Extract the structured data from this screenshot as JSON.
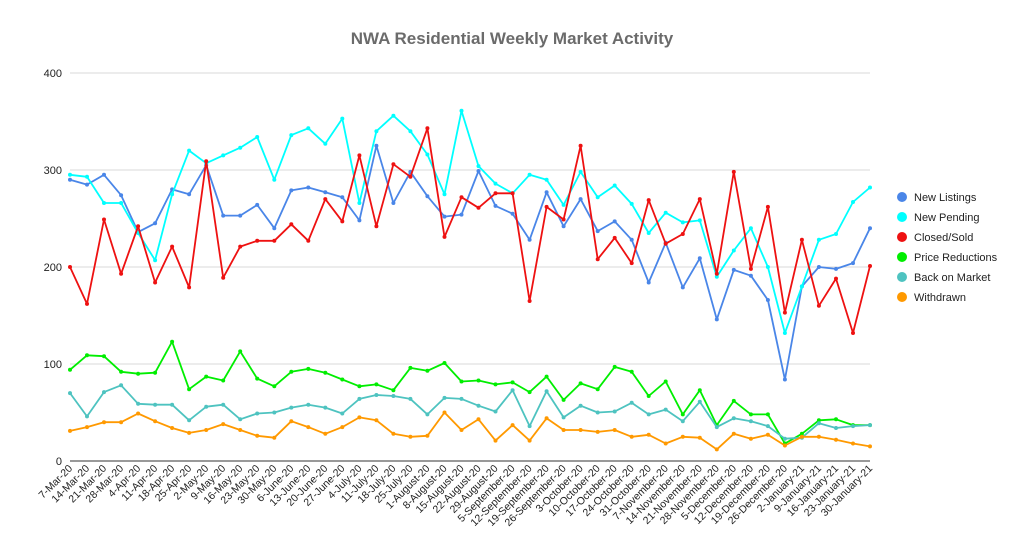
{
  "chart_data": {
    "type": "line",
    "title": "NWA Residential Weekly Market Activity",
    "xlabel": "",
    "ylabel": "",
    "ylim": [
      0,
      400
    ],
    "yticks": [
      0,
      100,
      200,
      300,
      400
    ],
    "grid": true,
    "legend_position": "right",
    "categories": [
      "7-Mar-20",
      "14-Mar-20",
      "21-Mar-20",
      "28-Mar-20",
      "4-Apr-20",
      "11-Apr-20",
      "18-Apr-20",
      "25-Apr-20",
      "2-May-20",
      "9-May-20",
      "16-May-20",
      "23-May-20",
      "30-May-20",
      "6-June-20",
      "13-June-20",
      "20-June-20",
      "27-June-20",
      "4-July-20",
      "11-July-20",
      "18-July-20",
      "25-July-20",
      "1-August-20",
      "8-August-20",
      "15-August-20",
      "22-August-20",
      "29-August-20",
      "5-September-20",
      "12-September-20",
      "19-September-20",
      "26-September-20",
      "3-October-20",
      "10-October-20",
      "17-October-20",
      "24-October-20",
      "31-October-20",
      "7-November-20",
      "14-November-20",
      "21-November-20",
      "28-November-20",
      "5-December-20",
      "12-December-20",
      "19-December-20",
      "26-December-20",
      "2-January-21",
      "9-January-21",
      "16-January-21",
      "23-January-21",
      "30-January-21"
    ],
    "series": [
      {
        "name": "New Listings",
        "color": "#4a86e8",
        "values": [
          290,
          285,
          295,
          274,
          236,
          245,
          280,
          275,
          305,
          253,
          253,
          264,
          240,
          279,
          282,
          277,
          272,
          248,
          325,
          266,
          298,
          273,
          252,
          254,
          299,
          263,
          255,
          228,
          277,
          242,
          270,
          237,
          247,
          228,
          184,
          225,
          179,
          209,
          146,
          197,
          191,
          166,
          84,
          180,
          200,
          198,
          204,
          240
        ]
      },
      {
        "name": "New Pending",
        "color": "#00ffff",
        "values": [
          295,
          293,
          266,
          266,
          235,
          207,
          275,
          320,
          307,
          315,
          323,
          334,
          290,
          336,
          343,
          327,
          353,
          266,
          340,
          356,
          340,
          316,
          275,
          361,
          304,
          286,
          276,
          295,
          290,
          264,
          298,
          272,
          284,
          265,
          235,
          256,
          246,
          248,
          190,
          217,
          240,
          200,
          132,
          180,
          228,
          234,
          267,
          282
        ]
      },
      {
        "name": "Closed/Sold",
        "color": "#ee1111",
        "values": [
          200,
          162,
          249,
          193,
          242,
          184,
          221,
          179,
          309,
          189,
          221,
          227,
          227,
          244,
          227,
          270,
          247,
          315,
          242,
          306,
          293,
          343,
          231,
          272,
          261,
          276,
          276,
          165,
          262,
          249,
          325,
          208,
          230,
          204,
          269,
          224,
          234,
          270,
          193,
          298,
          198,
          262,
          153,
          228,
          160,
          188,
          132,
          201
        ]
      },
      {
        "name": "Price Reductions",
        "color": "#00ee00",
        "values": [
          94,
          109,
          108,
          92,
          90,
          91,
          123,
          74,
          87,
          83,
          113,
          85,
          77,
          92,
          95,
          91,
          84,
          77,
          79,
          73,
          96,
          93,
          101,
          82,
          83,
          79,
          81,
          71,
          87,
          63,
          80,
          74,
          97,
          92,
          67,
          82,
          48,
          73,
          37,
          62,
          48,
          48,
          18,
          28,
          42,
          43,
          37,
          37
        ]
      },
      {
        "name": "Back on Market",
        "color": "#4ec3c0",
        "values": [
          70,
          46,
          71,
          78,
          59,
          58,
          58,
          42,
          56,
          58,
          43,
          49,
          50,
          55,
          58,
          55,
          49,
          64,
          68,
          67,
          64,
          48,
          65,
          64,
          57,
          51,
          73,
          36,
          72,
          45,
          57,
          50,
          51,
          60,
          48,
          53,
          41,
          61,
          35,
          44,
          41,
          36,
          23,
          24,
          39,
          34,
          36,
          37
        ]
      },
      {
        "name": "Withdrawn",
        "color": "#ff9900",
        "values": [
          31,
          35,
          40,
          40,
          49,
          41,
          34,
          29,
          32,
          38,
          32,
          26,
          24,
          41,
          35,
          28,
          35,
          45,
          42,
          28,
          25,
          26,
          50,
          32,
          43,
          21,
          37,
          21,
          44,
          32,
          32,
          30,
          32,
          25,
          27,
          18,
          25,
          24,
          12,
          28,
          23,
          27,
          16,
          25,
          25,
          22,
          18,
          15
        ]
      }
    ]
  }
}
